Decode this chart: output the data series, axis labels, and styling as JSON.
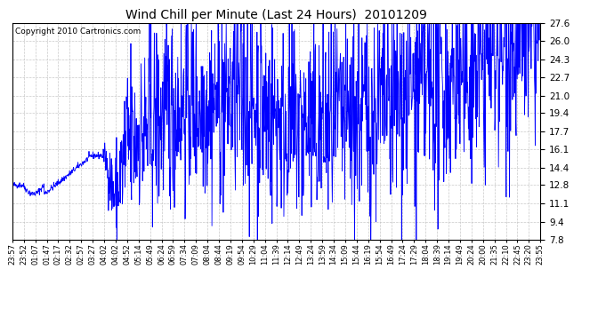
{
  "title": "Wind Chill per Minute (Last 24 Hours)  20101209",
  "copyright_text": "Copyright 2010 Cartronics.com",
  "line_color": "#0000FF",
  "bg_color": "#FFFFFF",
  "plot_bg_color": "#FFFFFF",
  "grid_color": "#BBBBBB",
  "yticks": [
    7.8,
    9.4,
    11.1,
    12.8,
    14.4,
    16.1,
    17.7,
    19.4,
    21.0,
    22.7,
    24.3,
    26.0,
    27.6
  ],
  "ylim": [
    7.8,
    27.6
  ],
  "x_labels": [
    "23:57",
    "23:52",
    "01:07",
    "01:47",
    "02:17",
    "02:32",
    "02:57",
    "03:27",
    "04:02",
    "04:02",
    "04:52",
    "05:14",
    "05:49",
    "06:24",
    "06:59",
    "07:34",
    "07:09",
    "08:04",
    "08:44",
    "09:19",
    "09:54",
    "10:29",
    "11:04",
    "11:39",
    "12:14",
    "12:49",
    "13:24",
    "13:59",
    "14:34",
    "15:09",
    "15:44",
    "16:19",
    "15:54",
    "16:49",
    "17:24",
    "17:29",
    "18:04",
    "18:39",
    "19:14",
    "19:49",
    "20:24",
    "20:00",
    "21:35",
    "22:10",
    "22:45",
    "23:20",
    "23:55"
  ],
  "num_points": 1440,
  "seed": 42
}
